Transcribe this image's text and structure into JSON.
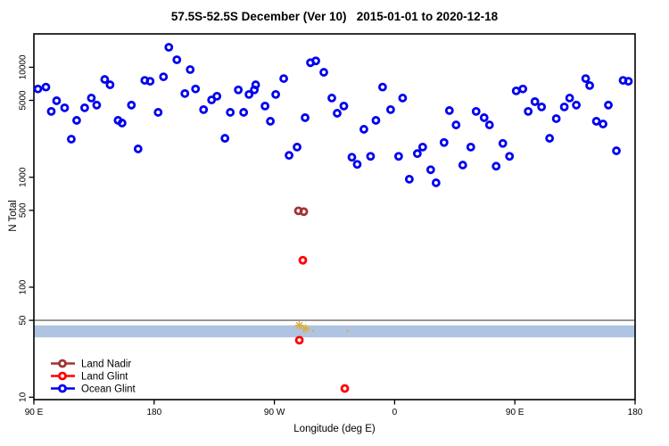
{
  "title": "57.5S-52.5S December (Ver 10)   2015-01-01 to 2020-12-18",
  "chart_data": {
    "type": "scatter",
    "title": "57.5S-52.5S December (Ver 10)   2015-01-01 to 2020-12-18",
    "xlabel": "Longitude (deg E)",
    "ylabel": "N Total",
    "x_axis": {
      "tick_labels": [
        "90 E",
        "180",
        "90 W",
        "0",
        "90 E",
        "180"
      ],
      "tick_positions_deg": [
        90,
        180,
        270,
        360,
        450,
        540
      ],
      "range_deg": [
        90,
        540
      ],
      "note": "longitude axis wraps eastward from 90E through 180, 90W, 0, 90E to 180"
    },
    "y_axis": {
      "scale": "log10",
      "tick_values": [
        10000,
        5000,
        1000,
        500,
        100,
        50,
        10
      ],
      "range": [
        9.5,
        20500
      ]
    },
    "grid": false,
    "reference_line": {
      "value": 50,
      "color": "#8C8C8C"
    },
    "shaded_band": {
      "from": 45,
      "to": 35,
      "color": "#AFC4E2"
    },
    "legend": {
      "position": "bottom-left",
      "entries": [
        {
          "label": "Land Nadir",
          "color": "#A03432"
        },
        {
          "label": "Land Glint",
          "color": "#FF0000"
        },
        {
          "label": "Ocean Glint",
          "color": "#0000EE"
        }
      ]
    },
    "series": [
      {
        "name": "Flagged",
        "color": "#DCAE46",
        "marker": "speck",
        "points": [
          [
            288.7,
            45,
            5
          ],
          [
            293.3,
            42,
            5
          ],
          [
            298.7,
            40,
            2
          ],
          [
            324.7,
            40,
            2
          ]
        ]
      },
      {
        "name": "Land Nadir",
        "color": "#A03432",
        "marker": "open-circle",
        "points": [
          [
            288,
            495
          ],
          [
            292,
            487
          ]
        ]
      },
      {
        "name": "Land Glint",
        "color": "#FF0000",
        "marker": "open-circle",
        "points": [
          [
            291.3,
            176
          ],
          [
            288.7,
            33
          ],
          [
            322.7,
            12
          ]
        ]
      },
      {
        "name": "Ocean Glint",
        "color": "#0000EE",
        "marker": "open-circle",
        "points": [
          [
            93,
            6350
          ],
          [
            99,
            6600
          ],
          [
            103,
            3970
          ],
          [
            107,
            4960
          ],
          [
            113,
            4280
          ],
          [
            118,
            2220
          ],
          [
            122,
            3290
          ],
          [
            128,
            4280
          ],
          [
            133,
            5250
          ],
          [
            137,
            4530
          ],
          [
            143,
            7750
          ],
          [
            147,
            6930
          ],
          [
            153,
            3290
          ],
          [
            156,
            3110
          ],
          [
            163,
            4530
          ],
          [
            168,
            1810
          ],
          [
            173,
            7600
          ],
          [
            177,
            7460
          ],
          [
            183,
            3890
          ],
          [
            187,
            8190
          ],
          [
            191,
            15200
          ],
          [
            197,
            11700
          ],
          [
            203,
            5770
          ],
          [
            207,
            9530
          ],
          [
            211,
            6350
          ],
          [
            217,
            4120
          ],
          [
            223,
            5050
          ],
          [
            227,
            5450
          ],
          [
            233,
            2260
          ],
          [
            237,
            3890
          ],
          [
            243,
            6230
          ],
          [
            247,
            3890
          ],
          [
            251,
            5660
          ],
          [
            255,
            6230
          ],
          [
            256,
            6930
          ],
          [
            263,
            4440
          ],
          [
            267,
            3230
          ],
          [
            271,
            5660
          ],
          [
            277,
            7890
          ],
          [
            281,
            1580
          ],
          [
            287,
            1880
          ],
          [
            293,
            3480
          ],
          [
            297,
            11000
          ],
          [
            301,
            11430
          ],
          [
            307,
            9000
          ],
          [
            313,
            5250
          ],
          [
            317,
            3820
          ],
          [
            322,
            4440
          ],
          [
            328,
            1520
          ],
          [
            332,
            1310
          ],
          [
            337,
            2730
          ],
          [
            342,
            1550
          ],
          [
            346,
            3290
          ],
          [
            351,
            6600
          ],
          [
            357,
            4120
          ],
          [
            363,
            1550
          ],
          [
            366,
            5250
          ],
          [
            371,
            960
          ],
          [
            377,
            1640
          ],
          [
            381,
            1880
          ],
          [
            387,
            1170
          ],
          [
            391,
            890
          ],
          [
            397,
            2070
          ],
          [
            401,
            4040
          ],
          [
            406,
            2990
          ],
          [
            411,
            1290
          ],
          [
            417,
            1880
          ],
          [
            421,
            3970
          ],
          [
            427,
            3480
          ],
          [
            431,
            2990
          ],
          [
            436,
            1260
          ],
          [
            441,
            2030
          ],
          [
            446,
            1550
          ],
          [
            451,
            6100
          ],
          [
            456,
            6350
          ],
          [
            460,
            3970
          ],
          [
            465,
            4870
          ],
          [
            470,
            4360
          ],
          [
            476,
            2260
          ],
          [
            481,
            3410
          ],
          [
            487,
            4360
          ],
          [
            491,
            5250
          ],
          [
            496,
            4530
          ],
          [
            503,
            7890
          ],
          [
            506,
            6820
          ],
          [
            511,
            3230
          ],
          [
            516,
            3050
          ],
          [
            520,
            4530
          ],
          [
            526,
            1740
          ],
          [
            531,
            7600
          ],
          [
            535,
            7460
          ]
        ]
      }
    ]
  }
}
